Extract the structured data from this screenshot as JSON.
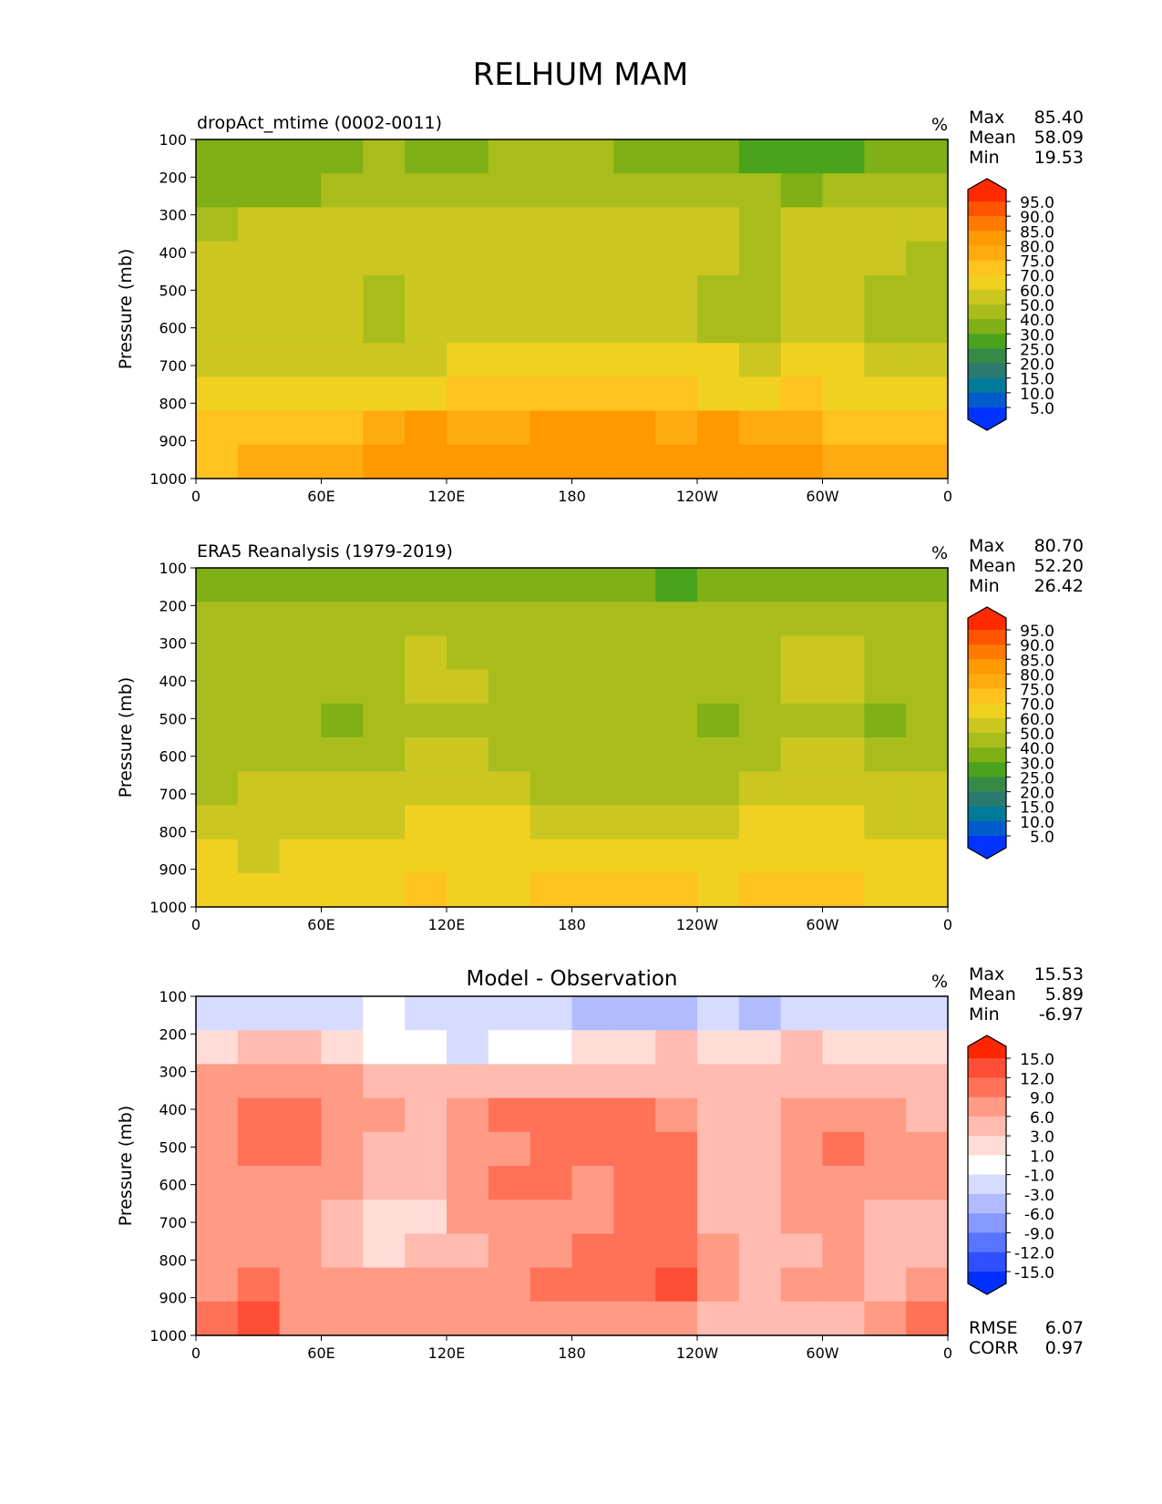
{
  "figure": {
    "title": "RELHUM MAM"
  },
  "chart_data": [
    {
      "type": "heatmap",
      "panel": "test",
      "title": "dropAct_mtime (0002-0011)",
      "units": "%",
      "ylabel": "Pressure (mb)",
      "xlabel": "",
      "x_ticks": [
        "0",
        "60E",
        "120E",
        "180",
        "120W",
        "60W",
        "0"
      ],
      "y_ticks": [
        "100",
        "200",
        "300",
        "400",
        "500",
        "600",
        "700",
        "800",
        "900",
        "1000"
      ],
      "xlim": [
        0,
        360
      ],
      "ylim": [
        1000,
        100
      ],
      "stats": [
        {
          "label": "Max",
          "value": "85.40"
        },
        {
          "label": "Mean",
          "value": "58.09"
        },
        {
          "label": "Min",
          "value": "19.53"
        }
      ],
      "colorbar": {
        "levels": [
          "95.0",
          "90.0",
          "85.0",
          "80.0",
          "75.0",
          "70.0",
          "60.0",
          "50.0",
          "40.0",
          "30.0",
          "25.0",
          "20.0",
          "15.0",
          "10.0",
          "5.0"
        ],
        "colors": [
          "#ff2a00",
          "#ff5500",
          "#ff7a00",
          "#ff9900",
          "#ffaa11",
          "#ffc21f",
          "#f0d020",
          "#cbc720",
          "#a8bd1c",
          "#7fb015",
          "#4aa31c",
          "#358a45",
          "#2a7a70",
          "#007a99",
          "#005ccc",
          "#0033ff"
        ]
      },
      "field": [
        [
          31,
          33,
          32,
          36,
          40,
          38,
          36,
          40,
          42,
          42,
          38,
          34,
          30,
          28,
          28,
          29,
          35,
          38
        ],
        [
          36,
          38,
          38,
          42,
          44,
          44,
          44,
          44,
          46,
          47,
          46,
          44,
          40,
          42,
          38,
          40,
          40,
          40
        ],
        [
          48,
          50,
          52,
          52,
          54,
          54,
          54,
          54,
          54,
          54,
          54,
          54,
          54,
          46,
          54,
          56,
          54,
          52
        ],
        [
          54,
          55,
          55,
          55,
          54,
          55,
          56,
          56,
          56,
          56,
          56,
          56,
          50,
          48,
          56,
          56,
          52,
          48
        ],
        [
          54,
          55,
          56,
          50,
          48,
          54,
          56,
          56,
          56,
          56,
          56,
          50,
          46,
          46,
          56,
          54,
          48,
          46
        ],
        [
          53,
          54,
          56,
          51,
          48,
          54,
          56,
          56,
          56,
          56,
          56,
          52,
          48,
          48,
          56,
          54,
          48,
          48
        ],
        [
          57,
          58,
          58,
          57,
          56,
          58,
          62,
          64,
          64,
          63,
          62,
          62,
          60,
          58,
          64,
          62,
          56,
          58
        ],
        [
          63,
          66,
          68,
          66,
          66,
          68,
          70,
          72,
          72,
          72,
          72,
          70,
          68,
          68,
          70,
          68,
          66,
          64
        ],
        [
          72,
          70,
          72,
          74,
          76,
          80,
          78,
          78,
          80,
          82,
          80,
          76,
          82,
          78,
          76,
          74,
          72,
          72
        ],
        [
          74,
          76,
          78,
          78,
          80,
          82,
          80,
          82,
          82,
          82,
          82,
          80,
          80,
          80,
          80,
          78,
          78,
          78
        ]
      ]
    },
    {
      "type": "heatmap",
      "panel": "reference",
      "title": "ERA5 Reanalysis (1979-2019)",
      "units": "%",
      "ylabel": "Pressure (mb)",
      "xlabel": "",
      "x_ticks": [
        "0",
        "60E",
        "120E",
        "180",
        "120W",
        "60W",
        "0"
      ],
      "y_ticks": [
        "100",
        "200",
        "300",
        "400",
        "500",
        "600",
        "700",
        "800",
        "900",
        "1000"
      ],
      "xlim": [
        0,
        360
      ],
      "ylim": [
        1000,
        100
      ],
      "stats": [
        {
          "label": "Max",
          "value": "80.70"
        },
        {
          "label": "Mean",
          "value": "52.20"
        },
        {
          "label": "Min",
          "value": "26.42"
        }
      ],
      "colorbar": {
        "levels": [
          "95.0",
          "90.0",
          "85.0",
          "80.0",
          "75.0",
          "70.0",
          "60.0",
          "50.0",
          "40.0",
          "30.0",
          "25.0",
          "20.0",
          "15.0",
          "10.0",
          "5.0"
        ],
        "colors": [
          "#ff2a00",
          "#ff5500",
          "#ff7a00",
          "#ff9900",
          "#ffaa11",
          "#ffc21f",
          "#f0d020",
          "#cbc720",
          "#a8bd1c",
          "#7fb015",
          "#4aa31c",
          "#358a45",
          "#2a7a70",
          "#007a99",
          "#005ccc",
          "#0033ff"
        ]
      },
      "field": [
        [
          38,
          36,
          30,
          34,
          38,
          38,
          38,
          38,
          36,
          34,
          32,
          28,
          30,
          34,
          38,
          36,
          32,
          30
        ],
        [
          42,
          42,
          42,
          42,
          44,
          44,
          44,
          44,
          44,
          44,
          44,
          42,
          40,
          42,
          44,
          44,
          42,
          42
        ],
        [
          46,
          46,
          46,
          46,
          46,
          50,
          46,
          46,
          46,
          46,
          46,
          46,
          46,
          46,
          52,
          52,
          46,
          46
        ],
        [
          46,
          46,
          46,
          46,
          48,
          52,
          54,
          46,
          46,
          46,
          46,
          46,
          46,
          46,
          52,
          50,
          46,
          46
        ],
        [
          46,
          46,
          46,
          38,
          46,
          48,
          46,
          46,
          46,
          46,
          46,
          46,
          38,
          40,
          46,
          46,
          38,
          46
        ],
        [
          46,
          46,
          46,
          46,
          46,
          52,
          50,
          46,
          46,
          46,
          46,
          46,
          46,
          46,
          50,
          50,
          46,
          46
        ],
        [
          48,
          54,
          52,
          52,
          52,
          54,
          54,
          52,
          48,
          48,
          48,
          48,
          48,
          50,
          54,
          56,
          52,
          50
        ],
        [
          56,
          58,
          58,
          58,
          58,
          60,
          60,
          60,
          58,
          58,
          58,
          58,
          58,
          60,
          62,
          60,
          58,
          56
        ],
        [
          60,
          58,
          62,
          62,
          64,
          68,
          66,
          64,
          66,
          66,
          66,
          64,
          66,
          64,
          66,
          64,
          62,
          60
        ],
        [
          62,
          62,
          64,
          64,
          66,
          72,
          68,
          66,
          70,
          72,
          72,
          70,
          68,
          72,
          72,
          70,
          66,
          64
        ]
      ]
    },
    {
      "type": "heatmap",
      "panel": "difference",
      "title": "Model - Observation",
      "units": "%",
      "ylabel": "Pressure (mb)",
      "xlabel": "",
      "x_ticks": [
        "0",
        "60E",
        "120E",
        "180",
        "120W",
        "60W",
        "0"
      ],
      "y_ticks": [
        "100",
        "200",
        "300",
        "400",
        "500",
        "600",
        "700",
        "800",
        "900",
        "1000"
      ],
      "xlim": [
        0,
        360
      ],
      "ylim": [
        1000,
        100
      ],
      "stats": [
        {
          "label": "Max",
          "value": "15.53"
        },
        {
          "label": "Mean",
          "value": "5.89"
        },
        {
          "label": "Min",
          "value": "-6.97"
        }
      ],
      "extra_stats": [
        {
          "label": "RMSE",
          "value": "6.07"
        },
        {
          "label": "CORR",
          "value": "0.97"
        }
      ],
      "colorbar": {
        "levels": [
          "15.0",
          "12.0",
          "9.0",
          "6.0",
          "3.0",
          "1.0",
          "-1.0",
          "-3.0",
          "-6.0",
          "-9.0",
          "-12.0",
          "-15.0"
        ],
        "colors": [
          "#ff2600",
          "#ff4e36",
          "#ff7258",
          "#ff9a85",
          "#ffbbb0",
          "#ffdcd6",
          "#ffffff",
          "#d6dcff",
          "#b0bcff",
          "#8599ff",
          "#5875ff",
          "#3050ff",
          "#0030ff"
        ]
      },
      "field": [
        [
          -2,
          -3,
          -2,
          -3,
          -1,
          -2,
          -2,
          -3,
          -3,
          -4,
          -4,
          -5,
          -3,
          -4,
          -3,
          -3,
          -3,
          -2
        ],
        [
          2,
          3,
          3,
          2,
          0,
          0,
          -2,
          -1,
          0,
          1,
          2,
          3,
          2,
          2,
          3,
          2,
          1,
          1
        ],
        [
          6,
          7,
          8,
          6,
          4,
          3,
          4,
          3,
          3,
          3,
          4,
          4,
          4,
          4,
          5,
          4,
          3,
          3
        ],
        [
          7,
          10,
          9,
          7,
          6,
          4,
          8,
          9,
          10,
          11,
          10,
          7,
          4,
          4,
          7,
          8,
          6,
          5
        ],
        [
          7,
          10,
          9,
          7,
          5,
          4,
          7,
          8,
          10,
          11,
          11,
          9,
          4,
          4,
          7,
          10,
          7,
          6
        ],
        [
          7,
          8,
          8,
          6,
          4,
          3,
          7,
          9,
          11,
          8,
          10,
          9,
          4,
          4,
          6,
          8,
          6,
          6
        ],
        [
          6,
          7,
          6,
          5,
          2,
          2,
          6,
          7,
          8,
          7,
          9,
          9,
          5,
          4,
          6,
          6,
          5,
          5
        ],
        [
          7,
          8,
          6,
          5,
          2,
          3,
          5,
          7,
          8,
          9,
          10,
          10,
          6,
          4,
          5,
          6,
          5,
          5
        ],
        [
          8,
          9,
          6,
          7,
          7,
          8,
          8,
          8,
          9,
          10,
          11,
          12,
          7,
          4,
          6,
          7,
          5,
          6
        ],
        [
          11,
          12,
          8,
          6,
          8,
          7,
          6,
          6,
          6,
          7,
          8,
          7,
          5,
          3,
          4,
          5,
          6,
          9
        ]
      ]
    }
  ]
}
